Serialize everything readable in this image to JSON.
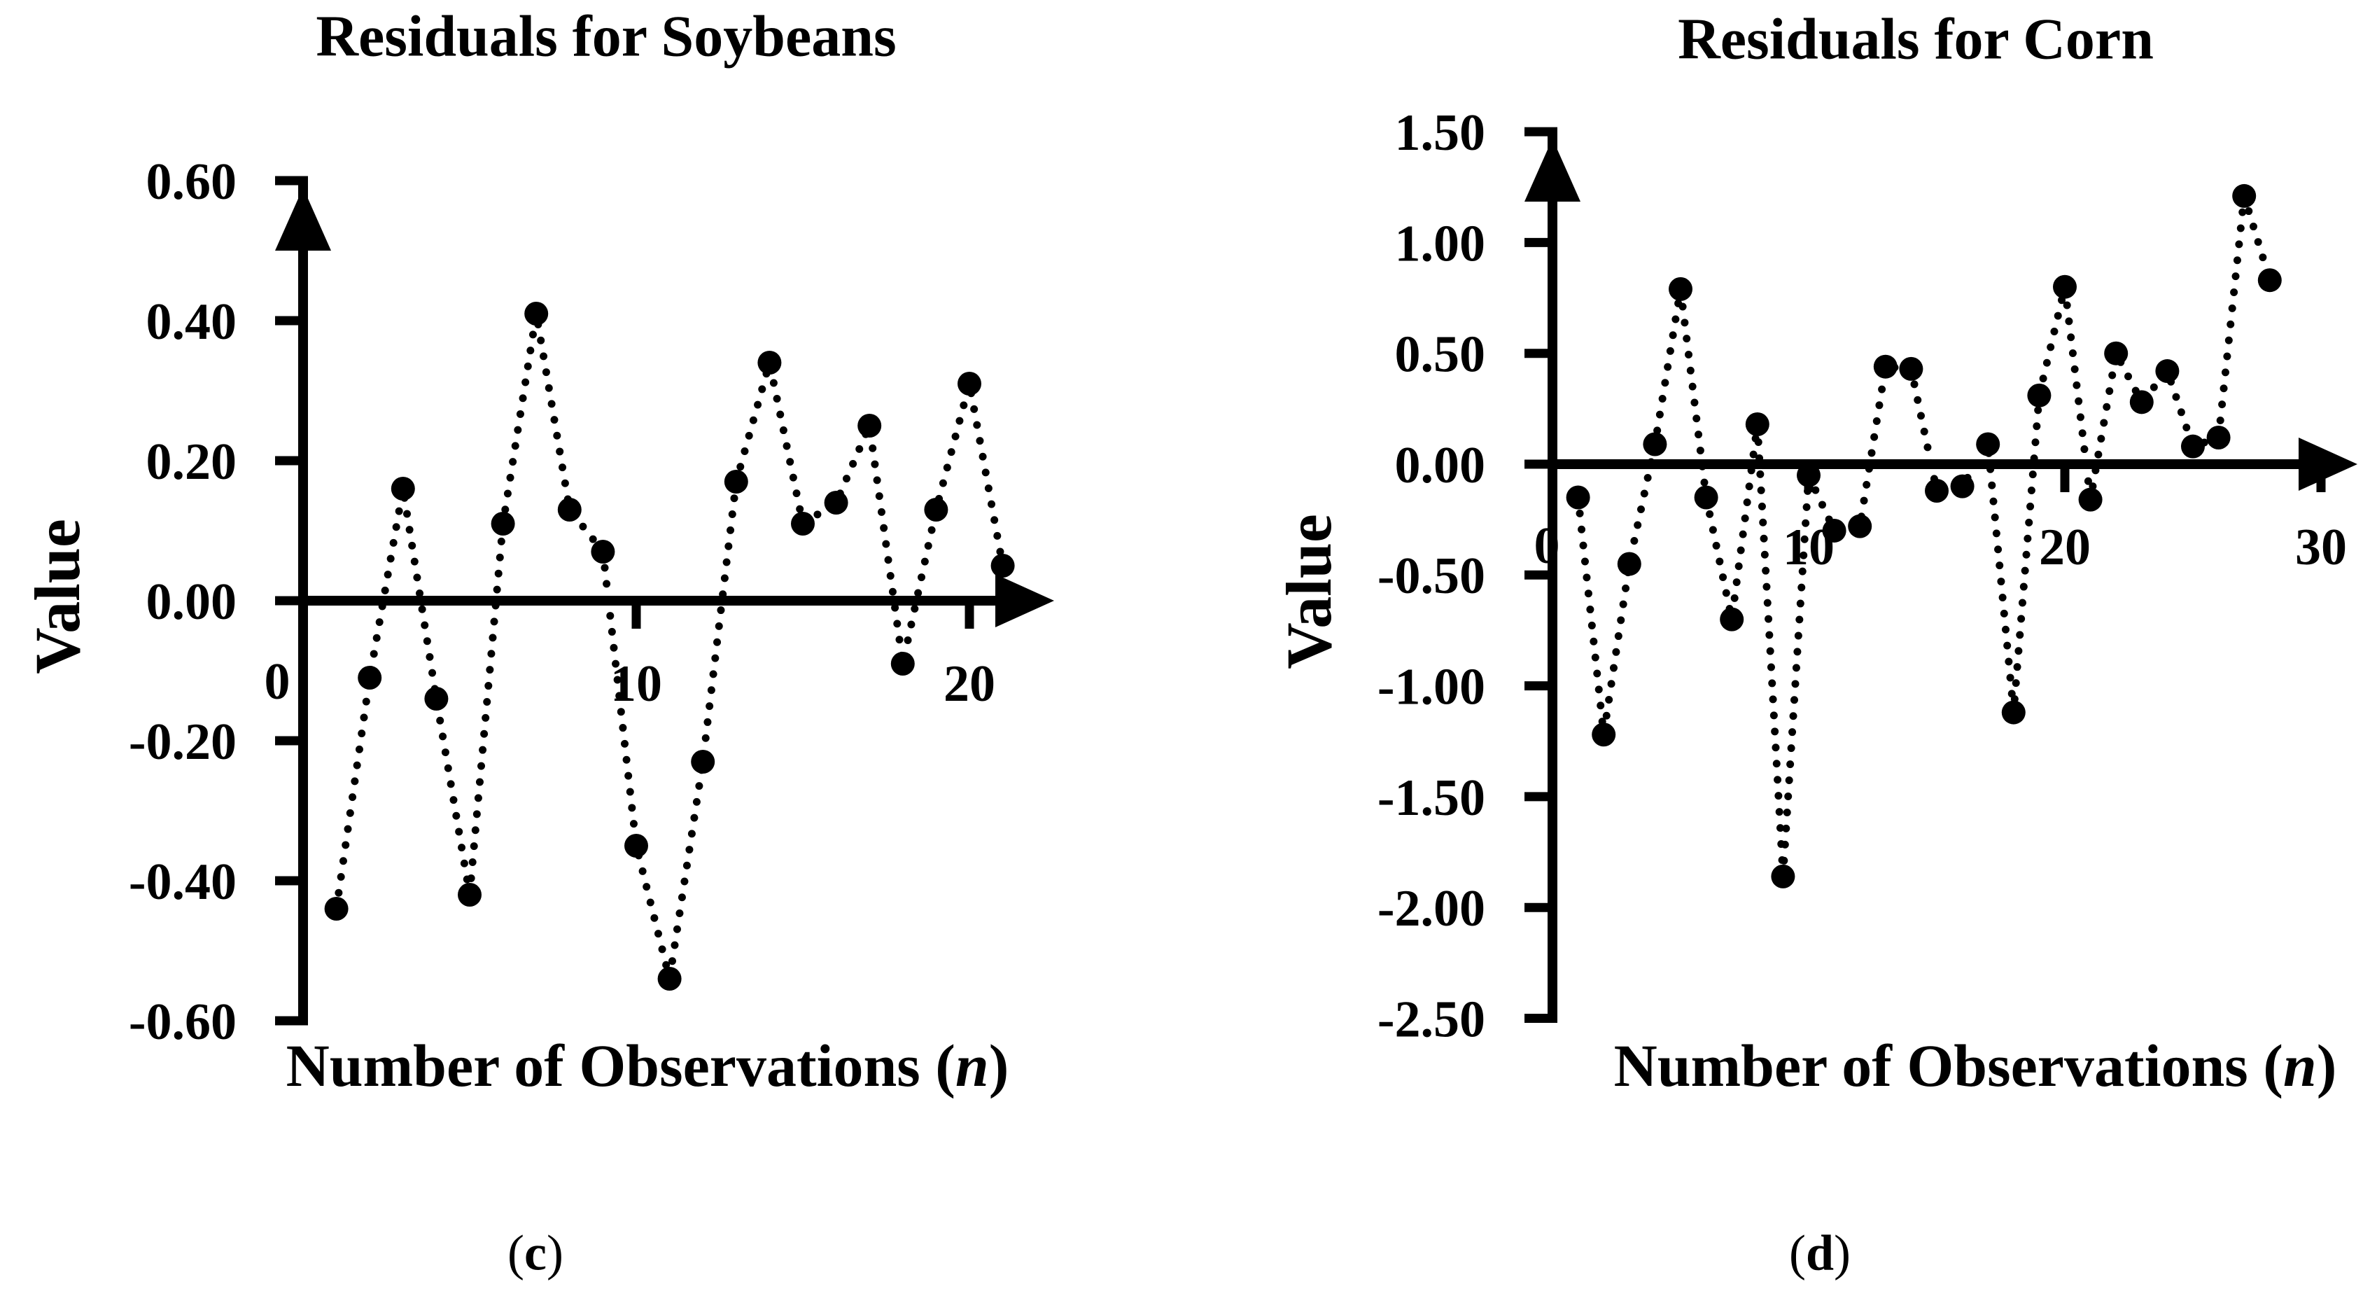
{
  "page": {
    "background": "#ffffff",
    "ink": "#000000"
  },
  "chart_data": [
    {
      "type": "scatter",
      "id": "soybeans",
      "title": "Residuals for Soybeans",
      "ylabel": "Value",
      "xlabel": "Number of Observations (n)",
      "xlabel_parts": {
        "prefix": "Number of Observations (",
        "italic_var": "n",
        "suffix": ")"
      },
      "caption_parts": {
        "open": "(",
        "letter": "c",
        "close": ")"
      },
      "marker": "filled-circle",
      "line_style": "dotted",
      "grid": false,
      "legend": "none",
      "xlim": [
        0,
        22.5
      ],
      "ylim": [
        -0.6,
        0.6
      ],
      "x": [
        1,
        2,
        3,
        4,
        5,
        6,
        7,
        8,
        9,
        10,
        11,
        12,
        13,
        14,
        15,
        16,
        17,
        18,
        19,
        20,
        21
      ],
      "values": [
        -0.44,
        -0.11,
        0.16,
        -0.14,
        -0.42,
        0.11,
        0.41,
        0.13,
        0.07,
        -0.35,
        -0.54,
        -0.23,
        0.17,
        0.34,
        0.11,
        0.14,
        0.25,
        -0.09,
        0.13,
        0.31,
        0.05
      ],
      "y_ticks": [
        {
          "value": 0.6,
          "label": "0.60"
        },
        {
          "value": 0.4,
          "label": "0.40"
        },
        {
          "value": 0.2,
          "label": "0.20"
        },
        {
          "value": 0.0,
          "label": "0.00"
        },
        {
          "value": -0.2,
          "label": "-0.20"
        },
        {
          "value": -0.4,
          "label": "-0.40"
        },
        {
          "value": -0.6,
          "label": "-0.60"
        }
      ],
      "x_ticks": [
        {
          "value": 10,
          "label": "10"
        },
        {
          "value": 20,
          "label": "20"
        }
      ],
      "x_origin_label": "0"
    },
    {
      "type": "scatter",
      "id": "corn",
      "title": "Residuals for Corn",
      "ylabel": "Value",
      "xlabel": "Number of Observations (n)",
      "xlabel_parts": {
        "prefix": "Number of Observations (",
        "italic_var": "n",
        "suffix": ")"
      },
      "caption_parts": {
        "open": "(",
        "letter": "d",
        "close": ")"
      },
      "marker": "filled-circle",
      "line_style": "dotted",
      "grid": false,
      "legend": "none",
      "xlim": [
        0,
        31.5
      ],
      "ylim": [
        -2.5,
        1.5
      ],
      "x": [
        1,
        2,
        3,
        4,
        5,
        6,
        7,
        8,
        9,
        10,
        11,
        12,
        13,
        14,
        15,
        16,
        17,
        18,
        19,
        20,
        21,
        22,
        23,
        24,
        25,
        26,
        27,
        28
      ],
      "values": [
        -0.15,
        -1.22,
        -0.45,
        0.09,
        0.79,
        -0.15,
        -0.7,
        0.18,
        -1.86,
        -0.05,
        -0.3,
        -0.28,
        0.44,
        0.43,
        -0.12,
        -0.1,
        0.09,
        -1.12,
        0.31,
        0.8,
        -0.16,
        0.5,
        0.28,
        0.42,
        0.08,
        0.12,
        1.21,
        0.83
      ],
      "y_ticks": [
        {
          "value": 1.5,
          "label": "1.50"
        },
        {
          "value": 1.0,
          "label": "1.00"
        },
        {
          "value": 0.5,
          "label": "0.50"
        },
        {
          "value": 0.0,
          "label": "0.00"
        },
        {
          "value": -0.5,
          "label": "-0.50"
        },
        {
          "value": -1.0,
          "label": "-1.00"
        },
        {
          "value": -1.5,
          "label": "-1.50"
        },
        {
          "value": -2.0,
          "label": "-2.00"
        },
        {
          "value": -2.5,
          "label": "-2.50"
        }
      ],
      "x_ticks": [
        {
          "value": 10,
          "label": "10"
        },
        {
          "value": 20,
          "label": "20"
        },
        {
          "value": 30,
          "label": "30"
        }
      ],
      "x_origin_label": "0"
    }
  ]
}
